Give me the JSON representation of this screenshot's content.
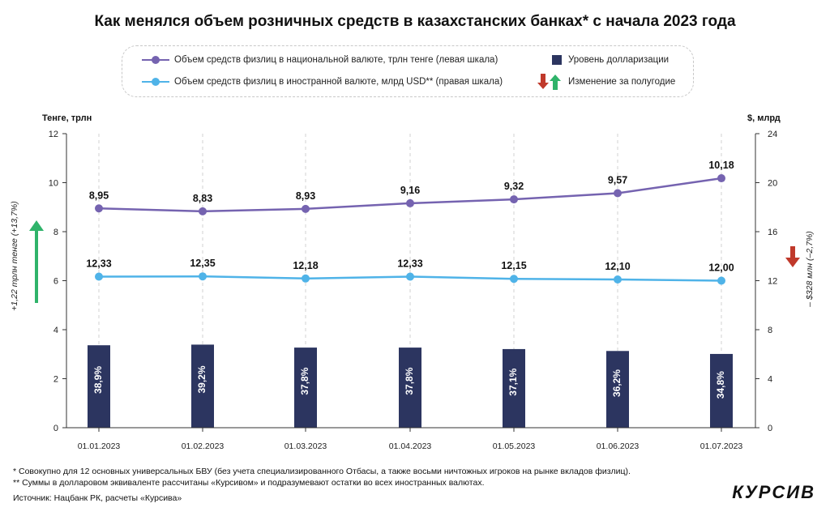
{
  "title": "Как менялся объем розничных средств в казахстанских банках* с начала 2023 года",
  "legend": {
    "kzt_label": "Объем средств физлиц в национальной валюте, трлн тенге (левая шкала)",
    "usd_label": "Объем средств физлиц в иностранной валюте, млрд USD** (правая шкала)",
    "dollarization_label": "Уровень долларизации",
    "change_label": "Изменение за полугодие"
  },
  "axes": {
    "left_title": "Тенге, трлн",
    "right_title": "$, млрд"
  },
  "notes": {
    "left_change": "+1,22 трлн тенге (+13,7%)",
    "right_change": "– $328 млн (–2,7%)"
  },
  "footnotes": {
    "note1": "* Совокупно для 12 основных универсальных БВУ (без учета специализированного Отбасы, а также восьми ничтожных игроков на рынке вкладов физлиц).",
    "note2": "** Суммы в долларовом эквиваленте рассчитаны «Курсивом» и подразумевают остатки во всех иностранных валютах.",
    "source": "Источник: Нацбанк РК, расчеты «Курсива»"
  },
  "logo": "КУРСИВ",
  "colors": {
    "kzt": "#7563b0",
    "usd": "#4fb3e8",
    "bar": "#2c3560",
    "up": "#2fb36a",
    "down": "#c0392b",
    "grid": "#d0d0d0"
  },
  "chart_data": {
    "type": "bar+line",
    "categories": [
      "01.01.2023",
      "01.02.2023",
      "01.03.2023",
      "01.04.2023",
      "01.05.2023",
      "01.06.2023",
      "01.07.2023"
    ],
    "series": [
      {
        "name": "Объем средств физлиц в национальной валюте, трлн тенге",
        "type": "line",
        "axis": "left",
        "values": [
          8.95,
          8.83,
          8.93,
          9.16,
          9.32,
          9.57,
          10.18
        ],
        "labels": [
          "8,95",
          "8,83",
          "8,93",
          "9,16",
          "9,32",
          "9,57",
          "10,18"
        ]
      },
      {
        "name": "Объем средств физлиц в иностранной валюте, млрд USD",
        "type": "line",
        "axis": "right",
        "values": [
          12.33,
          12.35,
          12.18,
          12.33,
          12.15,
          12.1,
          12.0
        ],
        "labels": [
          "12,33",
          "12,35",
          "12,18",
          "12,33",
          "12,15",
          "12,10",
          "12,00"
        ]
      },
      {
        "name": "Уровень долларизации",
        "type": "bar",
        "axis": "percent",
        "values": [
          38.9,
          39.2,
          37.8,
          37.8,
          37.1,
          36.2,
          34.8
        ],
        "labels": [
          "38,9%",
          "39,2%",
          "37,8%",
          "37,8%",
          "37,1%",
          "36,2%",
          "34,8%"
        ]
      }
    ],
    "left_axis": {
      "min": 0,
      "max": 12,
      "ticks": [
        "0",
        "2",
        "4",
        "6",
        "8",
        "10",
        "12"
      ]
    },
    "right_axis": {
      "min": 0,
      "max": 24,
      "ticks": [
        "0",
        "4",
        "8",
        "12",
        "16",
        "20",
        "24"
      ]
    }
  }
}
